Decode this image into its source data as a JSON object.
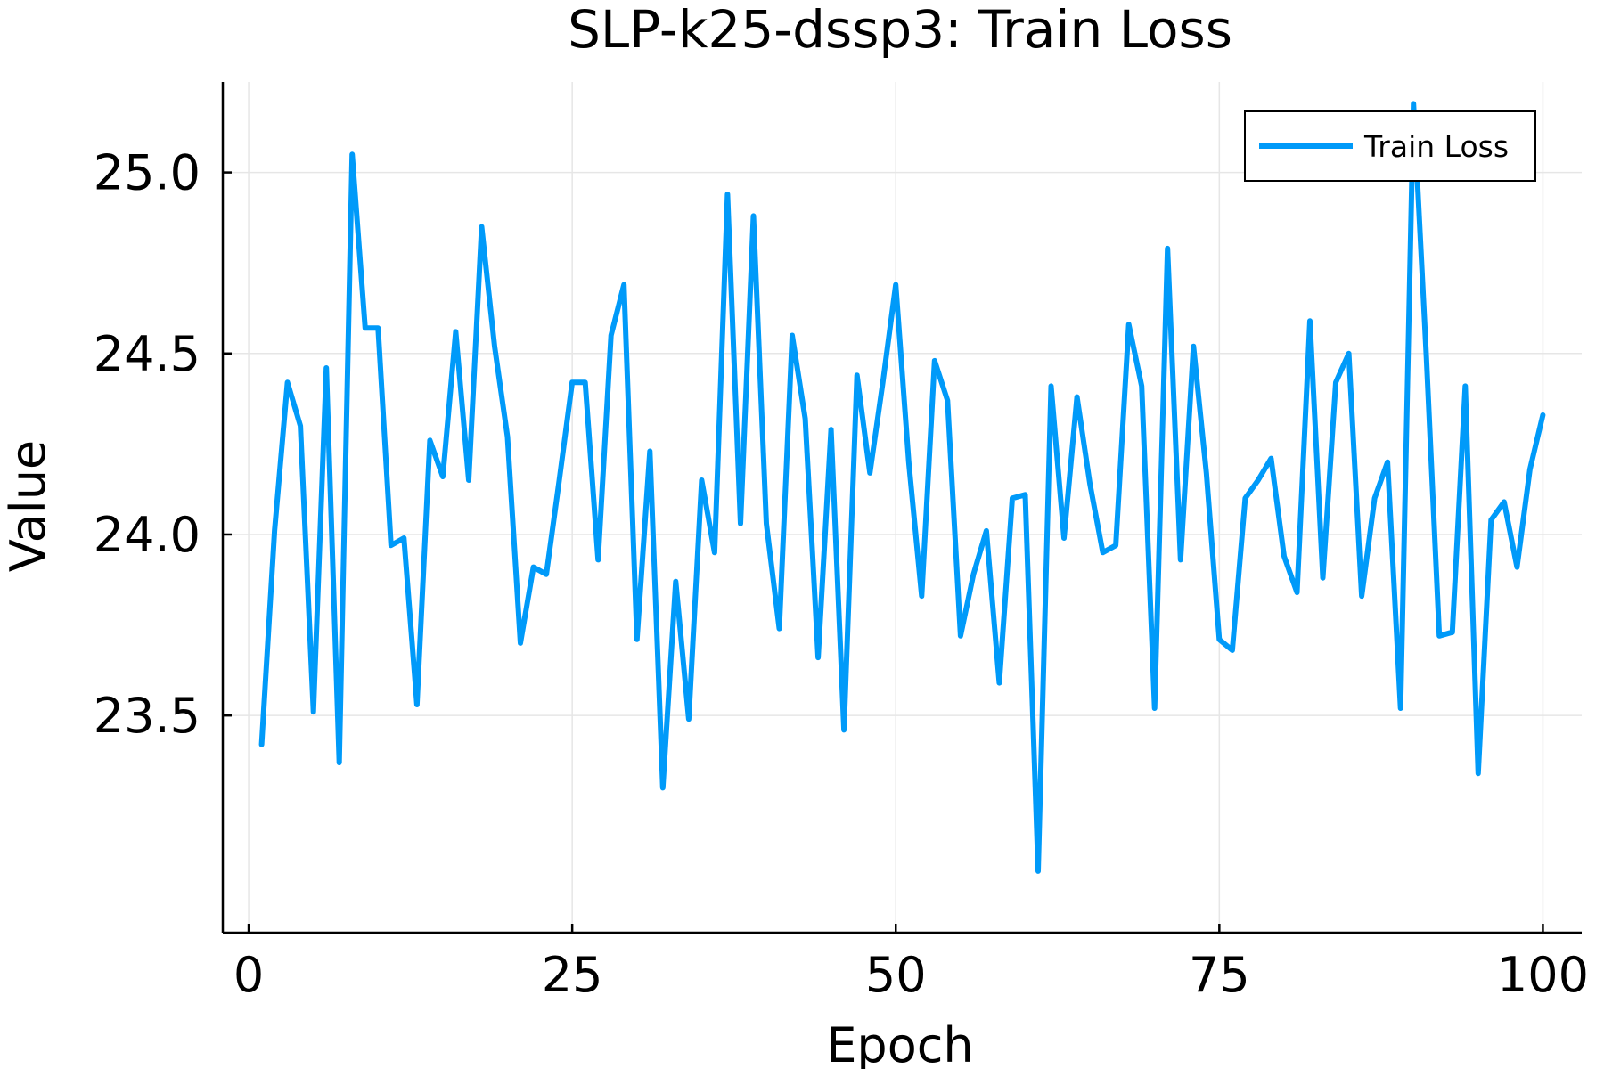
{
  "chart_data": {
    "type": "line",
    "title": "SLP-k25-dssp3: Train Loss",
    "xlabel": "Epoch",
    "ylabel": "Value",
    "xlim": [
      -2,
      103
    ],
    "ylim": [
      22.9,
      25.25
    ],
    "xticks": [
      0,
      25,
      50,
      75,
      100
    ],
    "xtick_labels": [
      "0",
      "25",
      "50",
      "75",
      "100"
    ],
    "yticks": [
      23.5,
      24.0,
      24.5,
      25.0
    ],
    "ytick_labels": [
      "23.5",
      "24.0",
      "24.5",
      "25.0"
    ],
    "grid": true,
    "legend_position": "top-right",
    "series": [
      {
        "name": "Train Loss",
        "color": "#009af9",
        "x": [
          1,
          2,
          3,
          4,
          5,
          6,
          7,
          8,
          9,
          10,
          11,
          12,
          13,
          14,
          15,
          16,
          17,
          18,
          19,
          20,
          21,
          22,
          23,
          24,
          25,
          26,
          27,
          28,
          29,
          30,
          31,
          32,
          33,
          34,
          35,
          36,
          37,
          38,
          39,
          40,
          41,
          42,
          43,
          44,
          45,
          46,
          47,
          48,
          49,
          50,
          51,
          52,
          53,
          54,
          55,
          56,
          57,
          58,
          59,
          60,
          61,
          62,
          63,
          64,
          65,
          66,
          67,
          68,
          69,
          70,
          71,
          72,
          73,
          74,
          75,
          76,
          77,
          78,
          79,
          80,
          81,
          82,
          83,
          84,
          85,
          86,
          87,
          88,
          89,
          90,
          91,
          92,
          93,
          94,
          95,
          96,
          97,
          98,
          99,
          100
        ],
        "values": [
          23.42,
          24.01,
          24.42,
          24.3,
          23.51,
          24.46,
          23.37,
          25.05,
          24.57,
          24.57,
          23.97,
          23.99,
          23.53,
          24.26,
          24.16,
          24.56,
          24.15,
          24.85,
          24.52,
          24.27,
          23.7,
          23.91,
          23.89,
          24.15,
          24.42,
          24.42,
          23.93,
          24.55,
          24.69,
          23.71,
          24.23,
          23.3,
          23.87,
          23.49,
          24.15,
          23.95,
          24.94,
          24.03,
          24.88,
          24.03,
          23.74,
          24.55,
          24.32,
          23.66,
          24.29,
          23.46,
          24.44,
          24.17,
          24.42,
          24.69,
          24.2,
          23.83,
          24.48,
          24.37,
          23.72,
          23.89,
          24.01,
          23.59,
          24.1,
          24.11,
          23.07,
          24.41,
          23.99,
          24.38,
          24.14,
          23.95,
          23.97,
          24.58,
          24.41,
          23.52,
          24.79,
          23.93,
          24.52,
          24.17,
          23.71,
          23.68,
          24.1,
          24.15,
          24.21,
          23.94,
          23.84,
          24.59,
          23.88,
          24.42,
          24.5,
          23.83,
          24.1,
          24.2,
          23.52,
          25.19,
          24.49,
          23.72,
          23.73,
          24.41,
          23.34,
          24.04,
          24.09,
          23.91,
          24.18,
          24.33
        ]
      }
    ]
  }
}
